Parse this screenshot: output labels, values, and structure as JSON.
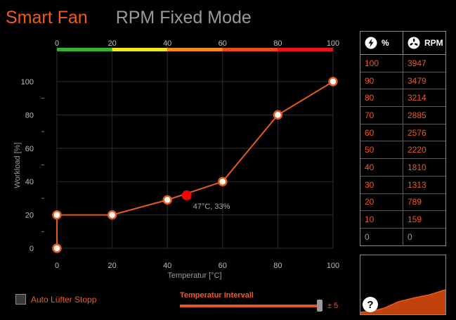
{
  "tabs": [
    {
      "label": "Smart Fan",
      "active": true
    },
    {
      "label": "RPM Fixed Mode",
      "active": false
    }
  ],
  "chart_data": {
    "type": "line",
    "xlabel": "Temperatur [°C]",
    "ylabel": "Workload [%]",
    "xlim": [
      0,
      100
    ],
    "ylim": [
      0,
      100
    ],
    "x_ticks": [
      0,
      20,
      40,
      60,
      80,
      100
    ],
    "y_ticks": [
      0,
      20,
      40,
      60,
      80,
      100
    ],
    "grid": true,
    "series": [
      {
        "points": [
          [
            0,
            0
          ],
          [
            0,
            20
          ],
          [
            20,
            20
          ],
          [
            40,
            29
          ],
          [
            60,
            40
          ],
          [
            80,
            80
          ],
          [
            100,
            100
          ]
        ],
        "color": "#e8581c"
      }
    ],
    "current_point": {
      "x": 47,
      "y": 33,
      "label": "47°C, 33%",
      "color": "#ff0000"
    },
    "temperature_scale": {
      "ticks": [
        0,
        20,
        40,
        60,
        80,
        100
      ],
      "segments": [
        {
          "from": 0,
          "to": 20,
          "color": "#34b233"
        },
        {
          "from": 20,
          "to": 40,
          "color": "#f2e81a"
        },
        {
          "from": 40,
          "to": 60,
          "color": "#f48a1b"
        },
        {
          "from": 60,
          "to": 80,
          "color": "#ee4a1c"
        },
        {
          "from": 80,
          "to": 100,
          "color": "#e8141a"
        }
      ]
    }
  },
  "rpm_table": {
    "header_percent": "%",
    "header_rpm": "RPM",
    "rows": [
      {
        "percent": "100",
        "rpm": "3947"
      },
      {
        "percent": "90",
        "rpm": "3479"
      },
      {
        "percent": "80",
        "rpm": "3214"
      },
      {
        "percent": "70",
        "rpm": "2885"
      },
      {
        "percent": "60",
        "rpm": "2576"
      },
      {
        "percent": "50",
        "rpm": "2220"
      },
      {
        "percent": "40",
        "rpm": "1810"
      },
      {
        "percent": "30",
        "rpm": "1313"
      },
      {
        "percent": "20",
        "rpm": "789"
      },
      {
        "percent": "10",
        "rpm": "159"
      },
      {
        "percent": "0",
        "rpm": "0"
      }
    ]
  },
  "auto_stop": {
    "label": "Auto Lüfter Stopp",
    "checked": false
  },
  "interval": {
    "label": "Temperatur Intervall",
    "value_text": "± 5",
    "value": 5
  },
  "help": {
    "label": "?"
  },
  "colors": {
    "accent": "#f05a1e",
    "curve": "#e8581c",
    "current": "#ff0000"
  }
}
